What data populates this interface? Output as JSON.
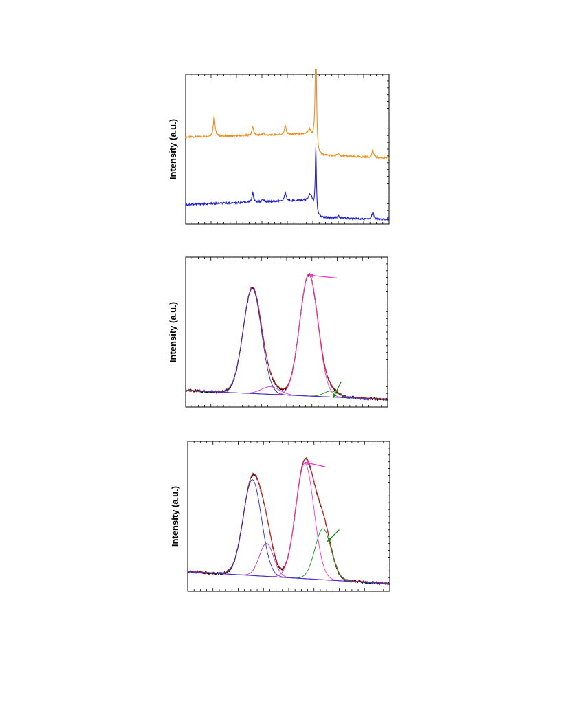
{
  "chart_data": [
    {
      "type": "line",
      "ylabel": "Intensity (a.u.)",
      "xlim": [
        0,
        100
      ],
      "ylim": [
        0,
        100
      ],
      "grid": false,
      "series": [
        {
          "color": "#f28c1c",
          "baseline": 58,
          "drift": [
            [
              0,
              58
            ],
            [
              60,
              60
            ],
            [
              63,
              56
            ],
            [
              64.5,
              46
            ],
            [
              100,
              44
            ]
          ],
          "peaks": [
            [
              14,
              14,
              0.5
            ],
            [
              33,
              6,
              0.5
            ],
            [
              38,
              1.5,
              0.5
            ],
            [
              49,
              6,
              0.5
            ],
            [
              61,
              4,
              0.6
            ],
            [
              64,
              90,
              0.35
            ],
            [
              75,
              1.5,
              0.5
            ],
            [
              92,
              5,
              0.5
            ]
          ]
        },
        {
          "color": "#1f1fd6",
          "baseline": 14,
          "drift": [
            [
              0,
              13
            ],
            [
              10,
              13.5
            ],
            [
              62,
              16
            ],
            [
              64.5,
              4.5
            ],
            [
              100,
              3
            ]
          ],
          "peaks": [
            [
              33,
              6,
              0.5
            ],
            [
              38,
              1.5,
              0.5
            ],
            [
              49,
              6,
              0.5
            ],
            [
              61,
              4,
              0.6
            ],
            [
              64,
              44,
              0.35
            ],
            [
              75,
              1.5,
              0.5
            ],
            [
              92,
              5,
              0.5
            ]
          ]
        }
      ]
    },
    {
      "type": "line",
      "ylabel": "Intensity (a.u.)",
      "xlim": [
        0,
        100
      ],
      "ylim": [
        0,
        100
      ],
      "grid": false,
      "arrows": [
        {
          "color": "#ff33cc",
          "from": [
            75,
            86
          ],
          "to": [
            61,
            88
          ]
        },
        {
          "color": "#1a8c1a",
          "from": [
            77,
            17
          ],
          "to": [
            73,
            6
          ]
        }
      ],
      "background": [
        [
          0,
          11
        ],
        [
          100,
          5
        ]
      ],
      "series": [
        {
          "name": "",
          "role": "data",
          "color": "#000000",
          "peaks": [
            [
              33,
              70,
              4.5
            ],
            [
              42,
              5,
              4.5
            ],
            [
              61,
              81,
              4.5
            ],
            [
              72,
              4,
              3.5
            ]
          ]
        },
        {
          "name": "",
          "role": "fit",
          "color": "#d62020",
          "peaks": [
            [
              33,
              70,
              4.5
            ],
            [
              42,
              5,
              4.5
            ],
            [
              61,
              81,
              4.5
            ],
            [
              72,
              4,
              3.5
            ]
          ]
        },
        {
          "name": "",
          "role": "component",
          "color": "#2a2ad6",
          "peaks": [
            [
              33,
              70,
              4.5
            ]
          ]
        },
        {
          "name": "",
          "role": "component",
          "color": "#cc33cc",
          "peaks": [
            [
              42,
              5,
              4.5
            ]
          ]
        },
        {
          "name": "",
          "role": "component",
          "color": "#ff33cc",
          "peaks": [
            [
              61,
              81,
              4.5
            ]
          ]
        },
        {
          "name": "",
          "role": "component",
          "color": "#1a8c1a",
          "peaks": [
            [
              72,
              4,
              3.5
            ]
          ]
        }
      ]
    },
    {
      "type": "line",
      "ylabel": "Intensity (a.u.)",
      "xlim": [
        0,
        100
      ],
      "ylim": [
        0,
        100
      ],
      "grid": false,
      "arrows": [
        {
          "color": "#ff33cc",
          "from": [
            68,
            83
          ],
          "to": [
            58,
            86
          ]
        },
        {
          "color": "#1a8c1a",
          "from": [
            75,
            41
          ],
          "to": [
            69,
            33
          ]
        }
      ],
      "background": [
        [
          0,
          13
        ],
        [
          100,
          5
        ]
      ],
      "series": [
        {
          "name": "",
          "role": "data",
          "color": "#000000",
          "peaks": [
            [
              32,
              64,
              4.5
            ],
            [
              39,
              22,
              3.5
            ],
            [
              58,
              77,
              4.5
            ],
            [
              67,
              34,
              4
            ]
          ]
        },
        {
          "name": "",
          "role": "fit",
          "color": "#d62020",
          "peaks": [
            [
              32,
              64,
              4.5
            ],
            [
              39,
              22,
              3.5
            ],
            [
              58,
              77,
              4.5
            ],
            [
              67,
              34,
              4
            ]
          ]
        },
        {
          "name": "",
          "role": "component",
          "color": "#2a2ad6",
          "peaks": [
            [
              32,
              64,
              4.5
            ]
          ]
        },
        {
          "name": "",
          "role": "component",
          "color": "#cc33cc",
          "peaks": [
            [
              39,
              22,
              3.5
            ]
          ]
        },
        {
          "name": "",
          "role": "component",
          "color": "#ff33cc",
          "peaks": [
            [
              58,
              77,
              4.5
            ]
          ]
        },
        {
          "name": "",
          "role": "component",
          "color": "#1a8c1a",
          "peaks": [
            [
              67,
              34,
              4
            ]
          ]
        }
      ]
    }
  ]
}
